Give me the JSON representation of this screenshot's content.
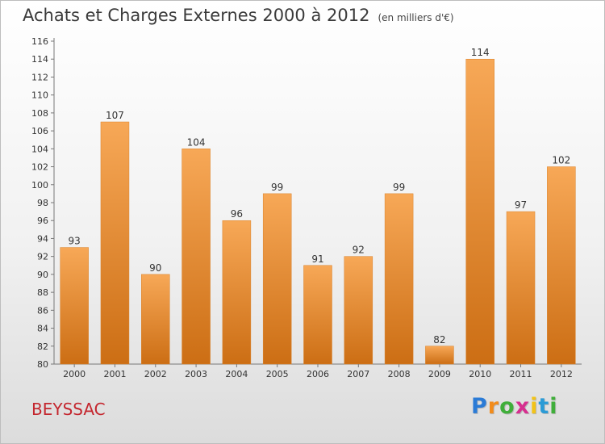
{
  "title": "Achats et Charges Externes 2000 à 2012",
  "subtitle": "(en milliers d'€)",
  "commune": "BEYSSAC",
  "logo": {
    "letters": [
      "P",
      "r",
      "o",
      "x",
      "i",
      "t",
      "i"
    ],
    "colors": [
      "#2b7bd6",
      "#f28c1b",
      "#3fae3a",
      "#d62f8f",
      "#f2c318",
      "#2b9bd6",
      "#3fae3a"
    ]
  },
  "colors": {
    "bar_light": "#f7a857",
    "bar_dark": "#cc6e14",
    "title_text": "#3a3a3a",
    "commune_text": "#c4262e"
  },
  "chart_data": {
    "type": "bar",
    "categories": [
      "2000",
      "2001",
      "2002",
      "2003",
      "2004",
      "2005",
      "2006",
      "2007",
      "2008",
      "2009",
      "2010",
      "2011",
      "2012"
    ],
    "values": [
      93,
      107,
      90,
      104,
      96,
      99,
      91,
      92,
      99,
      82,
      114,
      97,
      102
    ],
    "ylim": [
      80,
      116
    ],
    "yticks": [
      80,
      82,
      84,
      86,
      88,
      90,
      92,
      94,
      96,
      98,
      100,
      102,
      104,
      106,
      108,
      110,
      112,
      114,
      116
    ],
    "grid": false,
    "legend": "none"
  }
}
